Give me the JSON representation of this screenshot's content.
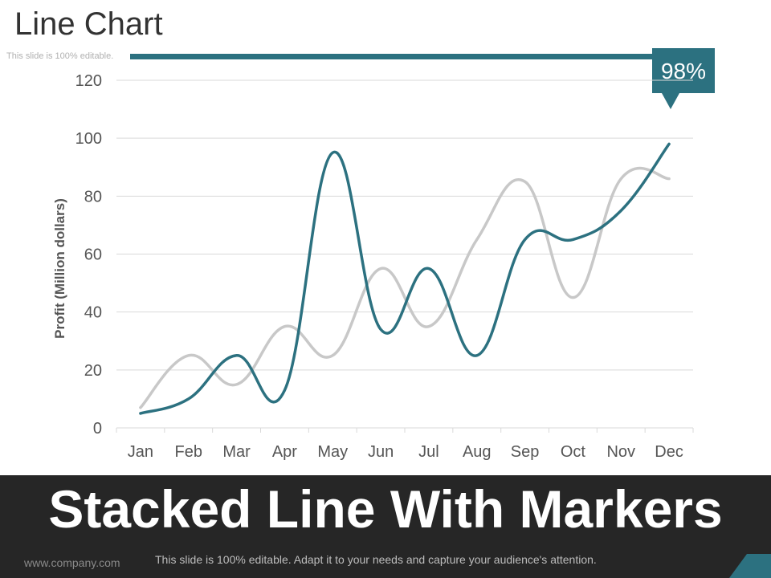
{
  "slide": {
    "title": "Line Chart",
    "note": "This slide is 100% editable.",
    "callout": "98%",
    "banner": "Stacked Line With Markers",
    "footer_url": "www.company.com",
    "footer_text": "This slide is 100% editable. Adapt it to your needs and capture your audience's attention."
  },
  "colors": {
    "accent": "#2c7180",
    "series_primary": "#2c7180",
    "series_secondary": "#c8c8c8",
    "grid": "#d9d9d9",
    "banner_bg": "#262626"
  },
  "chart_data": {
    "type": "line",
    "title": "",
    "xlabel": "",
    "ylabel": "Profit  (Million dollars)",
    "categories": [
      "Jan",
      "Feb",
      "Mar",
      "Apr",
      "May",
      "Jun",
      "Jul",
      "Aug",
      "Sep",
      "Oct",
      "Nov",
      "Dec"
    ],
    "ylim": [
      0,
      120
    ],
    "yticks": [
      0,
      20,
      40,
      60,
      80,
      100,
      120
    ],
    "grid": true,
    "smooth": true,
    "series": [
      {
        "color": "#2c7180",
        "values": [
          5,
          10,
          25,
          13,
          95,
          34,
          55,
          25,
          65,
          65,
          75,
          98
        ]
      },
      {
        "color": "#c8c8c8",
        "values": [
          7,
          25,
          15,
          35,
          25,
          55,
          35,
          65,
          85,
          45,
          86,
          86
        ]
      }
    ]
  }
}
